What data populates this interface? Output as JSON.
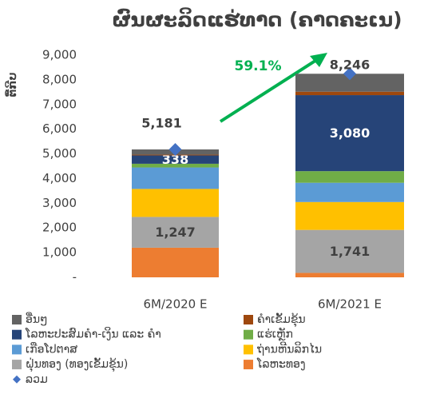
{
  "chart_data": {
    "type": "stacked_bar",
    "title": "ຜົນຜະລິດແຮ່ທາດ (ຄາດຄະເນ)",
    "y_label": "ຕື້ກີບ",
    "categories": [
      "6M/2020 E",
      "6M/2021 E"
    ],
    "ylim": [
      0,
      9000
    ],
    "yticks": [
      {
        "value": 0,
        "label": "-"
      },
      {
        "value": 1000,
        "label": "1,000"
      },
      {
        "value": 2000,
        "label": "2,000"
      },
      {
        "value": 3000,
        "label": "3,000"
      },
      {
        "value": 4000,
        "label": "4,000"
      },
      {
        "value": 5000,
        "label": "5,000"
      },
      {
        "value": 6000,
        "label": "6,000"
      },
      {
        "value": 7000,
        "label": "7,000"
      },
      {
        "value": 8000,
        "label": "8,000"
      },
      {
        "value": 9000,
        "label": "9,000"
      }
    ],
    "series": [
      {
        "name": "ໂລຫະທອງ",
        "color": "#ed7d31",
        "values": [
          1200,
          180
        ]
      },
      {
        "name": "ຝຸ່ນທອງ (ທອງເຂັ້ມຂຸ້ນ)",
        "color": "#a5a5a5",
        "values": [
          1247,
          1741
        ],
        "value_labels": [
          "1,247",
          "1,741"
        ]
      },
      {
        "name": "ຖ່ານຫີນລິກໄນ",
        "color": "#ffc000",
        "values": [
          1133,
          1129
        ]
      },
      {
        "name": "ເກືອໂປຕາສ",
        "color": "#5b9bd5",
        "values": [
          870,
          780
        ]
      },
      {
        "name": "ແຮ່ເຫຼັກ",
        "color": "#70ad47",
        "values": [
          150,
          470
        ]
      },
      {
        "name": "ໂລຫະປະສົມຄຳ-ເງິນ ແລະ ຄຳ",
        "color": "#264478",
        "values": [
          338,
          3080
        ],
        "value_labels": [
          "338",
          "3,080"
        ]
      },
      {
        "name": "ຄຳເຂັ້ມຂຸ້ນ",
        "color": "#9e480e",
        "values": [
          30,
          140
        ]
      },
      {
        "name": "ອື່ນໆ",
        "color": "#636363",
        "values": [
          213,
          726
        ]
      }
    ],
    "total": {
      "name": "ລວມ",
      "color": "#4472c4",
      "values": [
        5181,
        8246
      ],
      "value_labels": [
        "5,181",
        "8,246"
      ]
    },
    "annotation": "59.1%",
    "annotation_color": "#00b050"
  }
}
